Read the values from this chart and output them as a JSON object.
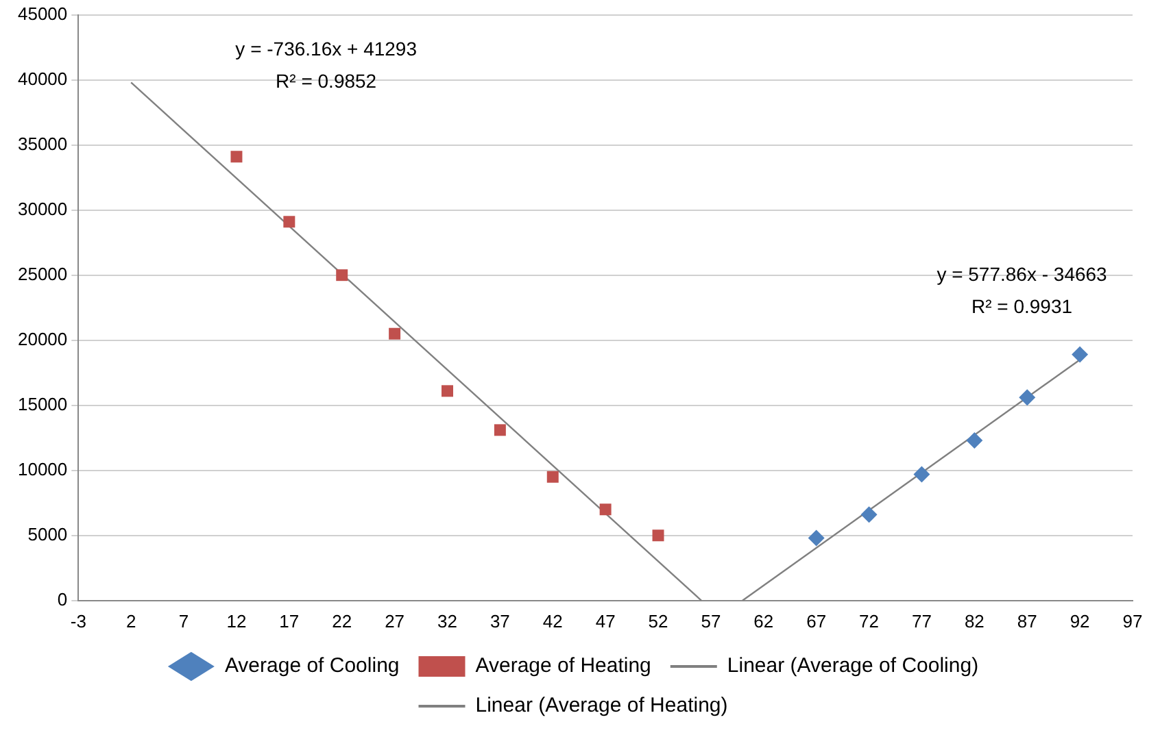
{
  "chart_data": {
    "type": "scatter",
    "series": [
      {
        "name": "Average of Cooling",
        "marker": "diamond",
        "color": "#4f81bd",
        "x": [
          67,
          72,
          77,
          82,
          87,
          92
        ],
        "values": [
          4800,
          6600,
          9700,
          12300,
          15600,
          18900
        ]
      },
      {
        "name": "Average of Heating",
        "marker": "square",
        "color": "#c0504d",
        "x": [
          12,
          17,
          22,
          27,
          32,
          37,
          42,
          47,
          52
        ],
        "values": [
          34100,
          29100,
          25000,
          20500,
          16100,
          13100,
          9500,
          7000,
          5000
        ]
      },
      {
        "name": "Linear (Average of Cooling)",
        "type": "line",
        "marker": "none",
        "color": "#808080",
        "x": [
          60,
          92
        ],
        "values": [
          0,
          18500
        ]
      },
      {
        "name": "Linear (Average of Heating)",
        "type": "line",
        "marker": "none",
        "color": "#808080",
        "x": [
          2,
          56.1
        ],
        "values": [
          39800,
          0
        ]
      }
    ],
    "xlim": [
      -3,
      97
    ],
    "xticks": [
      -3,
      2,
      7,
      12,
      17,
      22,
      27,
      32,
      37,
      42,
      47,
      52,
      57,
      62,
      67,
      72,
      77,
      82,
      87,
      92,
      97
    ],
    "ylim": [
      0,
      45000
    ],
    "yticks": [
      0,
      5000,
      10000,
      15000,
      20000,
      25000,
      30000,
      35000,
      40000,
      45000
    ],
    "grid": "y",
    "legend": "bottom",
    "line_style": "solid",
    "annotations": [
      "y = -736.16x + 41293",
      "R² = 0.9852",
      "y = 577.86x - 34663",
      "R² = 0.9931"
    ]
  }
}
